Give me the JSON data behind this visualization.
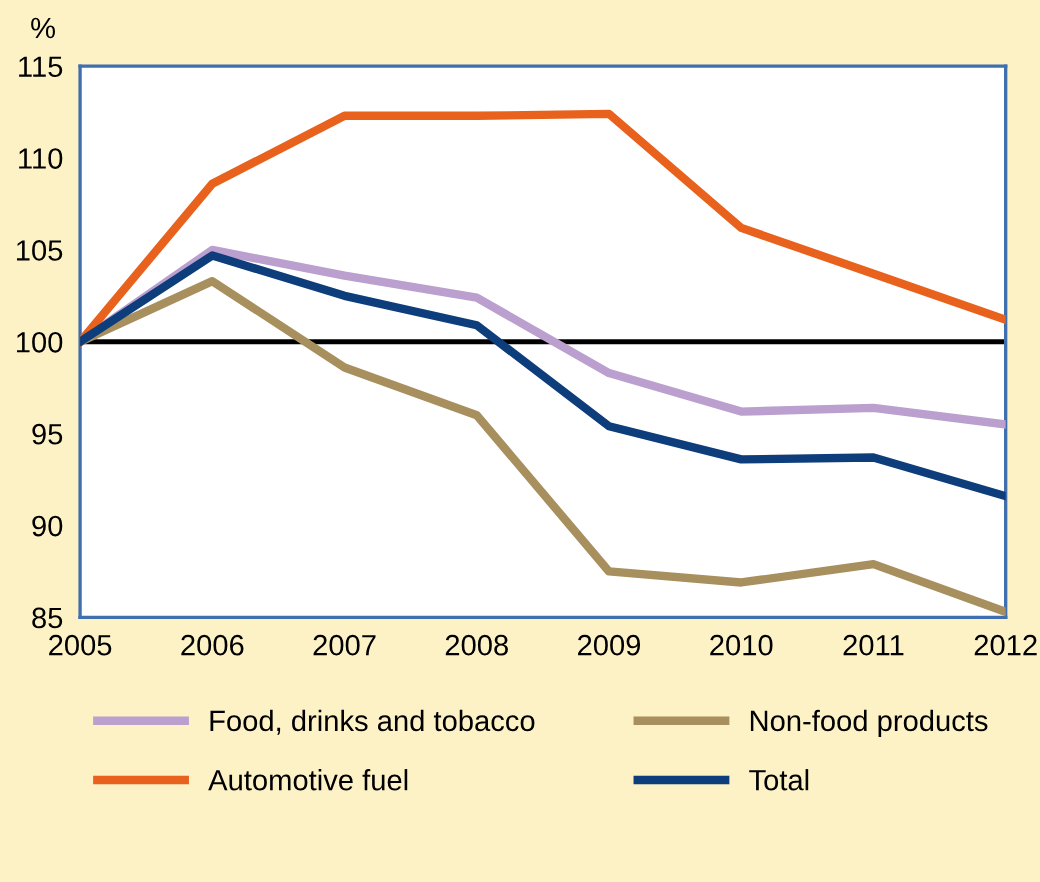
{
  "chart_data": {
    "type": "line",
    "ylabel": "%",
    "x": [
      2005,
      2006,
      2007,
      2008,
      2009,
      2010,
      2011,
      2012
    ],
    "xlim": [
      2005,
      2012
    ],
    "xticks": [
      2005,
      2006,
      2007,
      2008,
      2009,
      2010,
      2011,
      2012
    ],
    "ylim": [
      85,
      115
    ],
    "yticks": [
      85,
      90,
      95,
      100,
      105,
      110,
      115
    ],
    "series": [
      {
        "name": "Food, drinks and tobacco",
        "color": "#bb9fce",
        "values": [
          100,
          105,
          103.6,
          102.4,
          98.3,
          96.2,
          96.4,
          95.5
        ]
      },
      {
        "name": "Non-food products",
        "color": "#a88f5e",
        "values": [
          100,
          103.3,
          98.6,
          96,
          87.5,
          86.9,
          87.9,
          85.3
        ]
      },
      {
        "name": "Automotive fuel",
        "color": "#e8621d",
        "values": [
          100,
          108.6,
          112.3,
          112.3,
          112.4,
          106.2,
          103.7,
          101.2
        ]
      },
      {
        "name": "Total",
        "color": "#0e3d7c",
        "values": [
          100,
          104.7,
          102.5,
          100.9,
          95.4,
          93.6,
          93.7,
          91.6
        ]
      }
    ],
    "ref_lines": [
      {
        "axis": "y",
        "value": 100,
        "color": "#000000"
      }
    ],
    "grid": false,
    "legend": "bottom"
  }
}
